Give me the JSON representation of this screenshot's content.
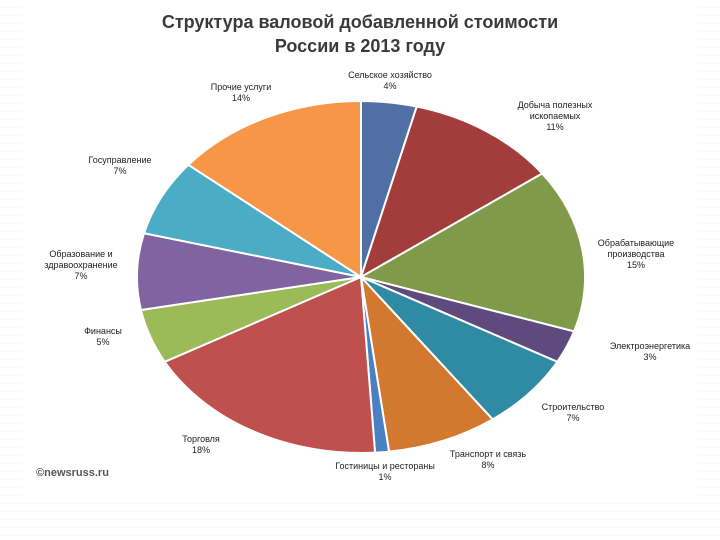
{
  "source": "©newsruss.ru",
  "chart_data": {
    "type": "pie",
    "title": [
      "Структура валовой добавленной стоимости",
      "России в 2013 году"
    ],
    "slices": [
      {
        "label": [
          "Сельское хозяйство"
        ],
        "pct_label": "4%",
        "value": 4,
        "color": "#4f6fa5"
      },
      {
        "label": [
          "Добыча полезных",
          "ископаемых"
        ],
        "pct_label": "11%",
        "value": 11,
        "color": "#a23d3c"
      },
      {
        "label": [
          "Обрабатывающие",
          "производства"
        ],
        "pct_label": "15%",
        "value": 15,
        "color": "#7f9a48"
      },
      {
        "label": [
          "Электроэнергетика"
        ],
        "pct_label": "3%",
        "value": 3,
        "color": "#5e4a7d"
      },
      {
        "label": [
          "Строительство"
        ],
        "pct_label": "7%",
        "value": 7,
        "color": "#2f8aa3"
      },
      {
        "label": [
          "Транспорт и связь"
        ],
        "pct_label": "8%",
        "value": 8,
        "color": "#d2782f"
      },
      {
        "label": [
          "Гостиницы и рестораны"
        ],
        "pct_label": "1%",
        "value": 1,
        "color": "#4a7fc1"
      },
      {
        "label": [
          "Торговля"
        ],
        "pct_label": "18%",
        "value": 18,
        "color": "#c0504d"
      },
      {
        "label": [
          "Финансы"
        ],
        "pct_label": "5%",
        "value": 5,
        "color": "#9bbb59"
      },
      {
        "label": [
          "Образование и",
          "здравоохранение"
        ],
        "pct_label": "7%",
        "value": 7,
        "color": "#8064a2"
      },
      {
        "label": [
          "Госуправление"
        ],
        "pct_label": "7%",
        "value": 7,
        "color": "#4bacc6"
      },
      {
        "label": [
          "Прочие услуги"
        ],
        "pct_label": "14%",
        "value": 14,
        "color": "#f79646"
      }
    ]
  }
}
